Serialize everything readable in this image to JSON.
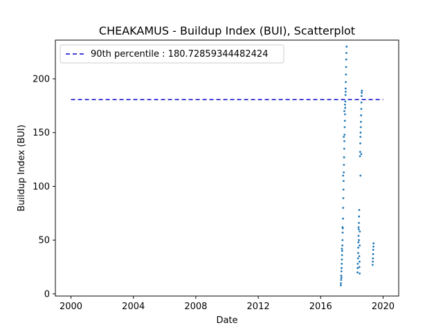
{
  "chart_data": {
    "type": "scatter",
    "title": "CHEAKAMUS - Buildup Index (BUI), Scatterplot",
    "xlabel": "Date",
    "ylabel": "Buildup Index (BUI)",
    "xlim": [
      1999.0,
      2021.0
    ],
    "ylim": [
      -2,
      236
    ],
    "x_ticks": [
      2000,
      2004,
      2008,
      2012,
      2016,
      2020
    ],
    "y_ticks": [
      0,
      50,
      100,
      150,
      200
    ],
    "grid": false,
    "legend": {
      "placement": "upper-left",
      "entries": [
        "90th percentile : 180.72859344482424"
      ]
    },
    "reference_line": {
      "label": "90th percentile : 180.72859344482424",
      "value": 180.72859344482424,
      "x_range": [
        2000.0,
        2020.0
      ],
      "style": "dashed",
      "color": "#0000cc"
    },
    "series": [
      {
        "color": "#1f77b4",
        "points": [
          [
            2017.29,
            8
          ],
          [
            2017.3,
            10
          ],
          [
            2017.31,
            13
          ],
          [
            2017.32,
            17
          ],
          [
            2017.33,
            21
          ],
          [
            2017.34,
            24
          ],
          [
            2017.35,
            28
          ],
          [
            2017.36,
            32
          ],
          [
            2017.37,
            36
          ],
          [
            2017.38,
            40
          ],
          [
            2017.39,
            45
          ],
          [
            2017.4,
            50
          ],
          [
            2017.41,
            57
          ],
          [
            2017.42,
            61
          ],
          [
            2017.43,
            70
          ],
          [
            2017.44,
            80
          ],
          [
            2017.45,
            89
          ],
          [
            2017.46,
            97
          ],
          [
            2017.47,
            105
          ],
          [
            2017.48,
            113
          ],
          [
            2017.49,
            120
          ],
          [
            2017.5,
            127
          ],
          [
            2017.51,
            135
          ],
          [
            2017.52,
            142
          ],
          [
            2017.53,
            148
          ],
          [
            2017.54,
            155
          ],
          [
            2017.55,
            161
          ],
          [
            2017.56,
            167
          ],
          [
            2017.57,
            173
          ],
          [
            2017.58,
            179
          ],
          [
            2017.59,
            185
          ],
          [
            2017.6,
            191
          ],
          [
            2017.61,
            197
          ],
          [
            2017.62,
            204
          ],
          [
            2017.63,
            211
          ],
          [
            2017.64,
            218
          ],
          [
            2017.65,
            224
          ],
          [
            2017.66,
            230
          ],
          [
            2017.33,
            15
          ],
          [
            2017.36,
            42
          ],
          [
            2017.4,
            62
          ],
          [
            2017.44,
            110
          ],
          [
            2017.48,
            146
          ],
          [
            2017.52,
            170
          ],
          [
            2017.56,
            176
          ],
          [
            2017.6,
            188
          ],
          [
            2018.36,
            20
          ],
          [
            2018.37,
            24
          ],
          [
            2018.38,
            28
          ],
          [
            2018.39,
            33
          ],
          [
            2018.4,
            38
          ],
          [
            2018.41,
            43
          ],
          [
            2018.42,
            48
          ],
          [
            2018.43,
            54
          ],
          [
            2018.44,
            60
          ],
          [
            2018.45,
            66
          ],
          [
            2018.46,
            72
          ],
          [
            2018.47,
            78
          ],
          [
            2018.48,
            25
          ],
          [
            2018.49,
            30
          ],
          [
            2018.5,
            45
          ],
          [
            2018.51,
            58
          ],
          [
            2018.52,
            128
          ],
          [
            2018.53,
            132
          ],
          [
            2018.54,
            140
          ],
          [
            2018.55,
            146
          ],
          [
            2018.56,
            150
          ],
          [
            2018.57,
            155
          ],
          [
            2018.58,
            160
          ],
          [
            2018.59,
            166
          ],
          [
            2018.6,
            172
          ],
          [
            2018.61,
            178
          ],
          [
            2018.62,
            184
          ],
          [
            2018.63,
            187
          ],
          [
            2018.64,
            189
          ],
          [
            2018.5,
            19
          ],
          [
            2018.47,
            35
          ],
          [
            2018.45,
            50
          ],
          [
            2018.43,
            62
          ],
          [
            2018.55,
            110
          ],
          [
            2018.6,
            130
          ],
          [
            2019.33,
            27
          ],
          [
            2019.34,
            30
          ],
          [
            2019.35,
            33
          ],
          [
            2019.36,
            37
          ],
          [
            2019.37,
            41
          ],
          [
            2019.38,
            44
          ],
          [
            2019.39,
            47
          ]
        ]
      }
    ]
  }
}
